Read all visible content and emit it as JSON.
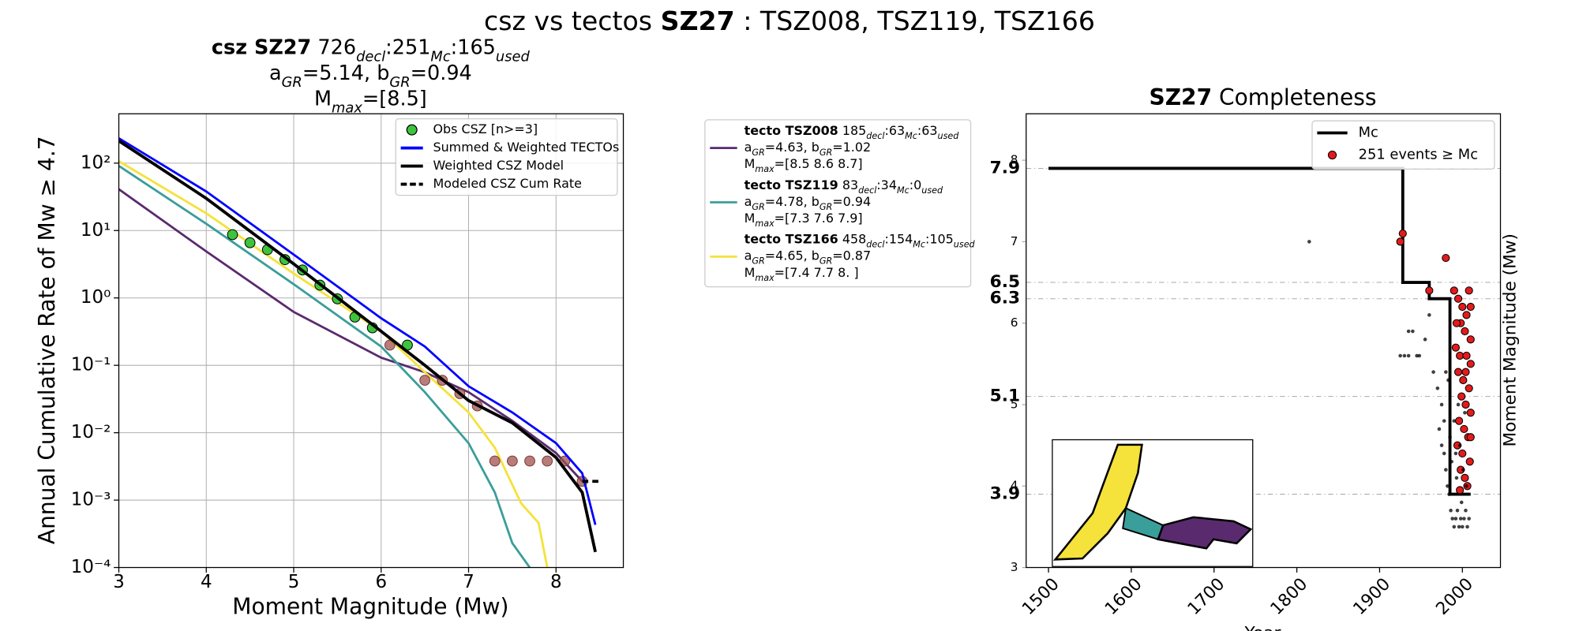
{
  "title": [
    {
      "text": "csz vs tectos "
    },
    {
      "text": "SZ27",
      "bold": true
    },
    {
      "text": " : TSZ008, TSZ119, TSZ166"
    }
  ],
  "chart_data": [
    {
      "type": "line",
      "title_lines": [
        [
          {
            "text": "csz SZ27",
            "bold": true
          },
          {
            "text": "  726"
          },
          {
            "text": "decl",
            "sub": true
          },
          {
            "text": ":251"
          },
          {
            "text": "Mc",
            "sub": true
          },
          {
            "text": ":165"
          },
          {
            "text": "used",
            "sub": true
          }
        ],
        [
          {
            "text": "a"
          },
          {
            "text": "GR",
            "sub": true
          },
          {
            "text": "=5.14,  b"
          },
          {
            "text": "GR",
            "sub": true
          },
          {
            "text": "=0.94"
          }
        ],
        [
          {
            "text": "M"
          },
          {
            "text": "max",
            "sub": true
          },
          {
            "text": "=[8.5]"
          }
        ]
      ],
      "xlabel": "Moment Magnitude (Mw)",
      "ylabel": "Annual Cumulative Rate of Mw ≥ 4.7",
      "xlim": [
        3,
        8.77
      ],
      "ylim": [
        0.0001,
        540
      ],
      "log_y": true,
      "grid": true,
      "legend": "upper right",
      "xticks": [
        3,
        4,
        5,
        6,
        7,
        8
      ],
      "yticks": [
        {
          "value": 0.0001,
          "label": "10⁻⁴"
        },
        {
          "value": 0.001,
          "label": "10⁻³"
        },
        {
          "value": 0.01,
          "label": "10⁻²"
        },
        {
          "value": 0.1,
          "label": "10⁻¹"
        },
        {
          "value": 1,
          "label": "10⁰"
        },
        {
          "value": 10,
          "label": "10¹"
        },
        {
          "value": 100,
          "label": "10²"
        }
      ],
      "series": [
        {
          "name": "tecto TSZ008",
          "color": "#5a2a6e",
          "style": "line",
          "legend_lines": [
            [
              {
                "text": " 185"
              },
              {
                "text": "decl",
                "sub": true
              },
              {
                "text": ":63"
              },
              {
                "text": "Mc",
                "sub": true
              },
              {
                "text": ":63"
              },
              {
                "text": "used",
                "sub": true
              }
            ],
            [
              {
                "text": "a"
              },
              {
                "text": "GR",
                "sub": true
              },
              {
                "text": "=4.63,  b"
              },
              {
                "text": "GR",
                "sub": true
              },
              {
                "text": "=1.02"
              }
            ],
            [
              {
                "text": "M"
              },
              {
                "text": "max",
                "sub": true
              },
              {
                "text": "=[8.5 8.6 8.7]"
              }
            ]
          ],
          "x": [
            3,
            4,
            5,
            6,
            6.5,
            7,
            7.5,
            8,
            8.3
          ],
          "values": [
            41,
            4.9,
            0.62,
            0.13,
            0.079,
            0.04,
            0.015,
            0.005,
            0.0019
          ]
        },
        {
          "name": "tecto TSZ119",
          "color": "#3a9e9a",
          "style": "line",
          "legend_lines": [
            [
              {
                "text": " 83"
              },
              {
                "text": "decl",
                "sub": true
              },
              {
                "text": ":34"
              },
              {
                "text": "Mc",
                "sub": true
              },
              {
                "text": ":0"
              },
              {
                "text": "used",
                "sub": true
              }
            ],
            [
              {
                "text": "a"
              },
              {
                "text": "GR",
                "sub": true
              },
              {
                "text": "=4.78,  b"
              },
              {
                "text": "GR",
                "sub": true
              },
              {
                "text": "=0.94"
              }
            ],
            [
              {
                "text": "M"
              },
              {
                "text": "max",
                "sub": true
              },
              {
                "text": "=[7.3 7.6 7.9]"
              }
            ]
          ],
          "x": [
            3,
            4,
            5,
            6,
            6.5,
            7,
            7.3,
            7.5,
            7.7
          ],
          "values": [
            91,
            12.6,
            1.6,
            0.19,
            0.04,
            0.007,
            0.0013,
            0.00023,
            0.0001
          ]
        },
        {
          "name": "tecto TSZ166",
          "color": "#f5e23a",
          "style": "line",
          "legend_lines": [
            [
              {
                "text": " 458"
              },
              {
                "text": "decl",
                "sub": true
              },
              {
                "text": ":154"
              },
              {
                "text": "Mc",
                "sub": true
              },
              {
                "text": ":105"
              },
              {
                "text": "used",
                "sub": true
              }
            ],
            [
              {
                "text": "a"
              },
              {
                "text": "GR",
                "sub": true
              },
              {
                "text": "=4.65,  b"
              },
              {
                "text": "GR",
                "sub": true
              },
              {
                "text": "=0.87"
              }
            ],
            [
              {
                "text": "M"
              },
              {
                "text": "max",
                "sub": true
              },
              {
                "text": "=[7.4 7.7 8. ]"
              }
            ]
          ],
          "x": [
            3,
            4,
            5,
            6,
            6.5,
            7,
            7.3,
            7.6,
            7.8,
            7.9
          ],
          "values": [
            107,
            18,
            2.3,
            0.32,
            0.079,
            0.02,
            0.006,
            0.0009,
            0.00046,
            0.0001
          ]
        },
        {
          "color": "#a0524f",
          "style": "scatter",
          "x": [
            6.1,
            6.5,
            6.7,
            6.9,
            7.1,
            7.3,
            7.5,
            7.7,
            7.9,
            8.1,
            8.3
          ],
          "values": [
            0.2,
            0.06,
            0.06,
            0.038,
            0.025,
            0.0038,
            0.0038,
            0.0038,
            0.0038,
            0.0038,
            0.0019
          ]
        },
        {
          "name": "Obs CSZ [n>=3]",
          "color": "#3cc43c",
          "style": "scatter",
          "x": [
            4.3,
            4.5,
            4.7,
            4.9,
            5.1,
            5.3,
            5.5,
            5.7,
            5.9,
            6.3
          ],
          "values": [
            8.7,
            6.6,
            5.2,
            3.7,
            2.6,
            1.55,
            0.97,
            0.52,
            0.36,
            0.2
          ]
        },
        {
          "name": "Summed & Weighted TECTOs",
          "color": "#0000ff",
          "style": "line",
          "x": [
            3,
            4,
            5,
            6,
            6.5,
            7,
            7.5,
            8,
            8.3,
            8.45
          ],
          "values": [
            234,
            38,
            4.4,
            0.5,
            0.19,
            0.049,
            0.02,
            0.007,
            0.0025,
            0.00043
          ]
        },
        {
          "name": "Weighted CSZ Model",
          "color": "#000000",
          "style": "line",
          "x": [
            3,
            4,
            5,
            6,
            6.5,
            7,
            7.5,
            8,
            8.3,
            8.45
          ],
          "values": [
            214,
            30,
            3.2,
            0.32,
            0.1,
            0.03,
            0.014,
            0.0043,
            0.0013,
            0.00017
          ]
        },
        {
          "name": "Modeled CSZ Cum Rate",
          "color": "#000000",
          "style": "dashed",
          "x": [
            8.3,
            8.5
          ],
          "values": [
            0.0019,
            0.0019
          ]
        }
      ]
    },
    {
      "type": "scatter",
      "title": [
        {
          "text": "SZ27",
          "bold": true
        },
        {
          "text": " Completeness"
        }
      ],
      "xlabel": "Year",
      "ylabel": "Moment Magnitude (Mw)",
      "xlim": [
        1473,
        2046
      ],
      "ylim": [
        3,
        8.57
      ],
      "legend": "upper right",
      "xticks": [
        1500,
        1600,
        1700,
        1800,
        1900,
        2000
      ],
      "yticks": [
        3,
        4,
        5,
        6,
        7,
        8
      ],
      "mc_ticks": [
        3.9,
        5.1,
        6.3,
        6.5,
        7.9
      ],
      "series": [
        {
          "name": "Mc",
          "color": "#000000",
          "style": "step",
          "x": [
            1500,
            1928,
            1928,
            1960,
            1960,
            1985,
            1985,
            2010
          ],
          "values": [
            7.9,
            7.9,
            6.5,
            6.5,
            6.3,
            6.3,
            3.9,
            3.9
          ]
        },
        {
          "name": "251 events ≥  Mc",
          "color": "#e41a1c",
          "style": "scatter",
          "x": [
            1928,
            1925,
            1980,
            1960,
            1990,
            2008,
            1995,
            2000,
            2005,
            1998,
            2003,
            2010,
            1992,
            1997,
            2005,
            2010,
            1995,
            2001,
            2008,
            1999,
            2004,
            2010,
            1996,
            2002,
            2007,
            1994,
            2000,
            2009,
            1998,
            2003,
            2006,
            1997,
            2010,
            2004,
            1993,
            2010
          ],
          "values": [
            7.1,
            7.0,
            6.8,
            6.4,
            6.4,
            6.4,
            6.3,
            6.2,
            6.1,
            6.0,
            5.9,
            5.8,
            5.7,
            5.6,
            5.6,
            5.5,
            5.4,
            5.3,
            5.2,
            5.1,
            5.0,
            4.9,
            4.8,
            4.7,
            4.6,
            4.5,
            4.4,
            4.3,
            4.2,
            4.1,
            4.0,
            3.95,
            4.6,
            5.4,
            6.0,
            6.2
          ]
        },
        {
          "color": "#000000",
          "style": "scatter",
          "x": [
            1815,
            1935,
            1940,
            1925,
            1930,
            1935,
            1945,
            1948,
            1955,
            1960,
            1965,
            1970,
            1972,
            1975,
            1978,
            1980,
            1982,
            1984,
            1986,
            1988,
            1990,
            1992,
            1994,
            1996,
            1998,
            2000,
            2002,
            2004,
            2006,
            2008,
            1985,
            1990,
            1995,
            1978,
            1983,
            1987,
            1993,
            1997,
            2001,
            2003,
            1975,
            1980,
            1992,
            1999,
            2005
          ],
          "values": [
            7.0,
            5.9,
            5.9,
            5.6,
            5.6,
            5.6,
            5.6,
            5.6,
            5.8,
            6.1,
            5.4,
            5.2,
            4.7,
            4.5,
            4.4,
            4.2,
            4.0,
            3.9,
            3.7,
            3.6,
            3.5,
            3.6,
            3.7,
            3.5,
            3.6,
            3.5,
            3.6,
            3.7,
            3.5,
            3.6,
            4.6,
            4.8,
            5.0,
            4.8,
            5.3,
            4.3,
            4.1,
            4.5,
            4.2,
            4.9,
            5.0,
            5.4,
            4.4,
            3.8,
            4.0
          ]
        }
      ]
    }
  ]
}
